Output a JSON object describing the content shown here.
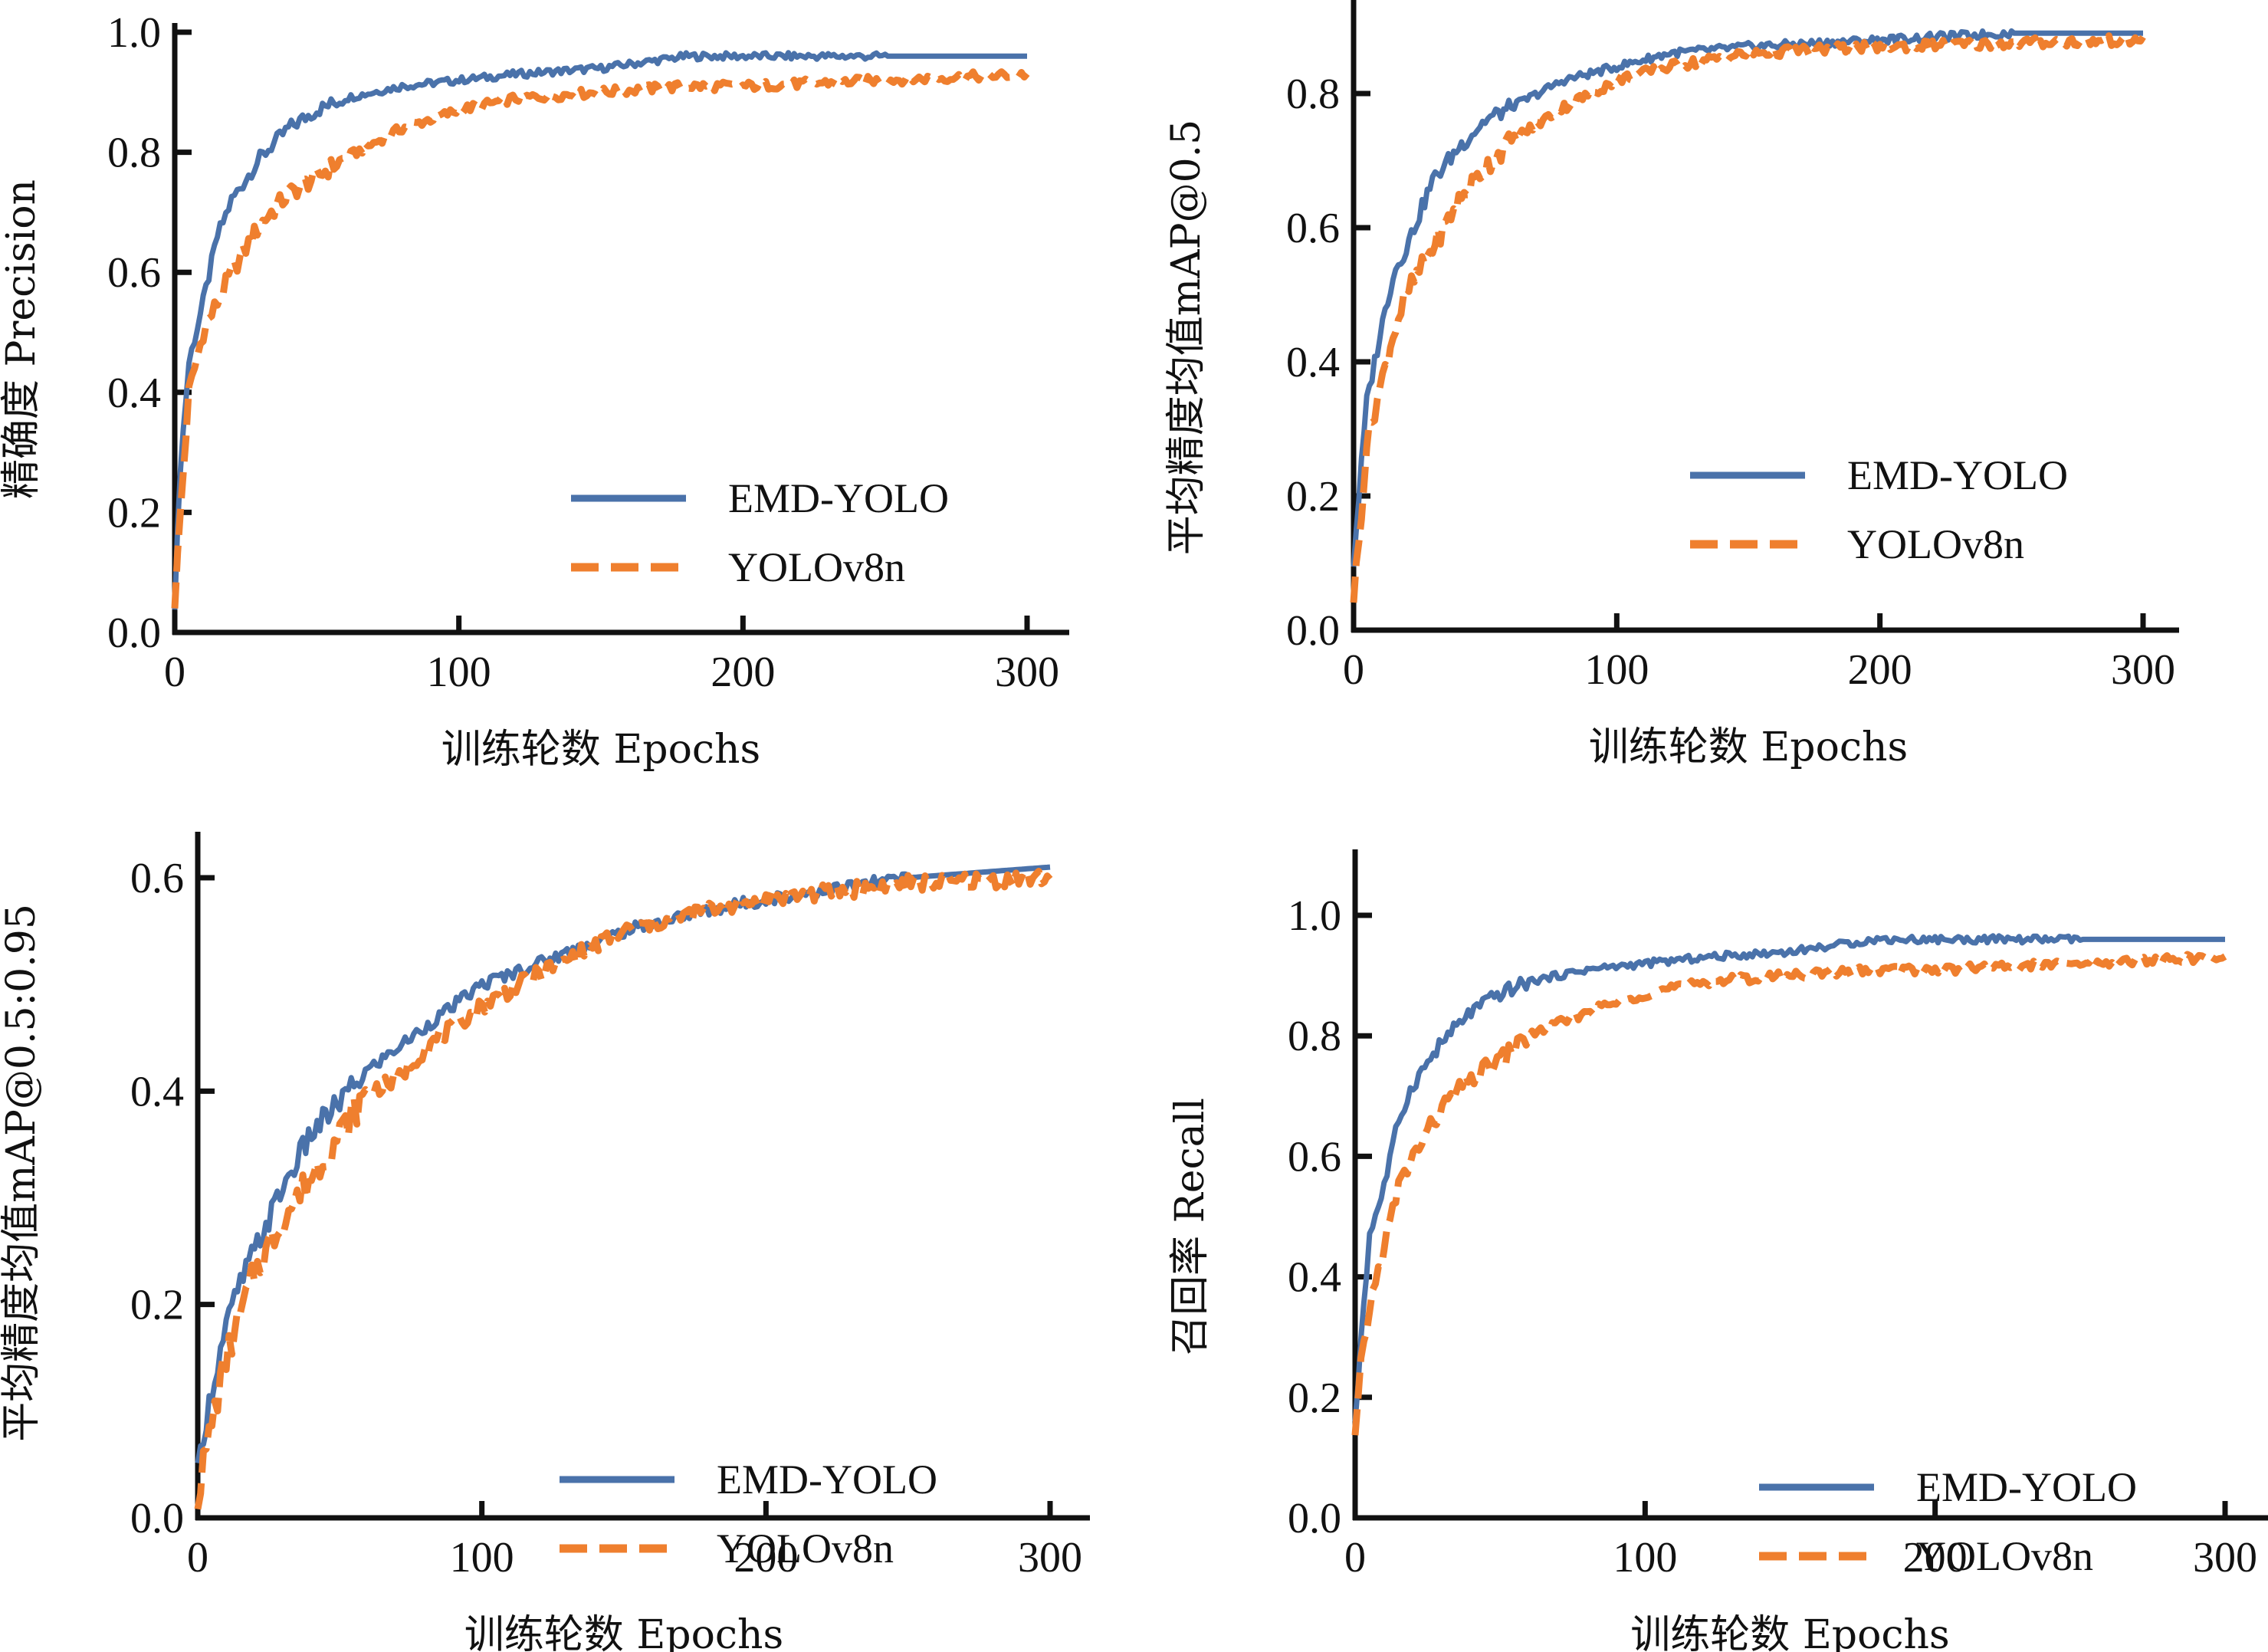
{
  "colors": {
    "emd": "#4a72aa",
    "yolo": "#ef7f2e",
    "axis": "#111111"
  },
  "chart_data": [
    {
      "id": "precision",
      "type": "line",
      "title": "",
      "xlabel": "训练轮数  Epochs",
      "ylabel": "精确度 Precision",
      "xlim": [
        0,
        300
      ],
      "ylim": [
        0,
        1.0
      ],
      "xticks": [
        0,
        100,
        200,
        300
      ],
      "xtick_labels": [
        "0",
        "100",
        "200",
        "300"
      ],
      "yticks": [
        0,
        0.2,
        0.4,
        0.6,
        0.8,
        1.0
      ],
      "ytick_labels": [
        "0.0",
        "0.2",
        "0.4",
        "0.6",
        "0.8",
        "1.0"
      ],
      "legend": "lower-right",
      "grid": false,
      "x": [
        0,
        2,
        5,
        10,
        15,
        20,
        30,
        40,
        50,
        60,
        80,
        100,
        120,
        150,
        180,
        200,
        250,
        300
      ],
      "series": [
        {
          "name": "EMD-YOLO",
          "style": "solid",
          "values": [
            0.05,
            0.28,
            0.45,
            0.55,
            0.66,
            0.72,
            0.79,
            0.84,
            0.87,
            0.89,
            0.91,
            0.92,
            0.93,
            0.94,
            0.96,
            0.96,
            0.96,
            0.96
          ]
        },
        {
          "name": "YOLOv8n",
          "style": "dashed",
          "values": [
            0.05,
            0.2,
            0.4,
            0.5,
            0.55,
            0.6,
            0.68,
            0.73,
            0.76,
            0.79,
            0.84,
            0.87,
            0.89,
            0.9,
            0.91,
            0.91,
            0.92,
            0.93
          ]
        }
      ]
    },
    {
      "id": "map50",
      "type": "line",
      "title": "",
      "xlabel": "训练轮数  Epochs",
      "ylabel": "平均精度均值mAP@0.5",
      "xlim": [
        0,
        300
      ],
      "ylim": [
        0,
        0.9
      ],
      "xticks": [
        0,
        100,
        200,
        300
      ],
      "xtick_labels": [
        "0",
        "100",
        "200",
        "300"
      ],
      "yticks": [
        0,
        0.2,
        0.4,
        0.6,
        0.8
      ],
      "ytick_labels": [
        "0.0",
        "0.2",
        "0.4",
        "0.6",
        "0.8"
      ],
      "legend": "lower-right",
      "grid": false,
      "x": [
        0,
        2,
        5,
        10,
        15,
        20,
        30,
        40,
        50,
        60,
        80,
        100,
        120,
        150,
        200,
        250,
        300
      ],
      "series": [
        {
          "name": "EMD-YOLO",
          "style": "solid",
          "values": [
            0.1,
            0.2,
            0.34,
            0.44,
            0.53,
            0.57,
            0.67,
            0.72,
            0.76,
            0.78,
            0.82,
            0.84,
            0.86,
            0.87,
            0.88,
            0.89,
            0.89
          ]
        },
        {
          "name": "YOLOv8n",
          "style": "dashed",
          "values": [
            0.05,
            0.13,
            0.28,
            0.36,
            0.44,
            0.5,
            0.57,
            0.64,
            0.69,
            0.73,
            0.78,
            0.82,
            0.84,
            0.86,
            0.87,
            0.875,
            0.88
          ]
        }
      ]
    },
    {
      "id": "map5095",
      "type": "line",
      "title": "",
      "xlabel": "训练轮数  Epochs",
      "ylabel": "平均精度均值mAP@0.5:0.95",
      "xlim": [
        0,
        300
      ],
      "ylim": [
        0,
        0.65
      ],
      "xticks": [
        0,
        100,
        200,
        300
      ],
      "xtick_labels": [
        "0",
        "100",
        "200",
        "300"
      ],
      "yticks": [
        0,
        0.2,
        0.4,
        0.6
      ],
      "ytick_labels": [
        "0.0",
        "0.2",
        "0.4",
        "0.6"
      ],
      "legend": "lower-right",
      "grid": false,
      "x": [
        0,
        2,
        5,
        10,
        15,
        20,
        30,
        40,
        50,
        60,
        70,
        80,
        100,
        120,
        150,
        180,
        200,
        250,
        300
      ],
      "series": [
        {
          "name": "EMD-YOLO",
          "style": "solid",
          "values": [
            0.04,
            0.08,
            0.12,
            0.18,
            0.22,
            0.25,
            0.31,
            0.36,
            0.39,
            0.42,
            0.44,
            0.46,
            0.5,
            0.52,
            0.55,
            0.57,
            0.58,
            0.6,
            0.61
          ]
        },
        {
          "name": "YOLOv8n",
          "style": "dashed",
          "values": [
            0.02,
            0.05,
            0.09,
            0.15,
            0.19,
            0.23,
            0.28,
            0.32,
            0.36,
            0.4,
            0.41,
            0.44,
            0.48,
            0.51,
            0.55,
            0.57,
            0.58,
            0.595,
            0.6
          ]
        }
      ]
    },
    {
      "id": "recall",
      "type": "line",
      "title": "",
      "xlabel": "训练轮数  Epochs",
      "ylabel": "召回率 Recall",
      "xlim": [
        0,
        300
      ],
      "ylim": [
        0,
        1.0
      ],
      "xticks": [
        0,
        100,
        200,
        300
      ],
      "xtick_labels": [
        "0",
        "100",
        "200",
        "300"
      ],
      "yticks": [
        0,
        0.2,
        0.4,
        0.6,
        0.8,
        1.0
      ],
      "ytick_labels": [
        "0.0",
        "0.2",
        "0.4",
        "0.6",
        "0.8",
        "1.0"
      ],
      "legend": "lower-right",
      "grid": false,
      "x": [
        0,
        2,
        5,
        10,
        15,
        20,
        30,
        40,
        50,
        60,
        80,
        100,
        120,
        150,
        180,
        200,
        250,
        300
      ],
      "series": [
        {
          "name": "EMD-YOLO",
          "style": "solid",
          "values": [
            0.15,
            0.3,
            0.47,
            0.55,
            0.66,
            0.72,
            0.79,
            0.84,
            0.87,
            0.89,
            0.91,
            0.92,
            0.93,
            0.94,
            0.96,
            0.96,
            0.96,
            0.96
          ]
        },
        {
          "name": "YOLOv8n",
          "style": "dashed",
          "values": [
            0.13,
            0.25,
            0.35,
            0.45,
            0.55,
            0.6,
            0.68,
            0.73,
            0.76,
            0.8,
            0.84,
            0.87,
            0.89,
            0.9,
            0.91,
            0.91,
            0.92,
            0.93
          ]
        }
      ]
    }
  ]
}
